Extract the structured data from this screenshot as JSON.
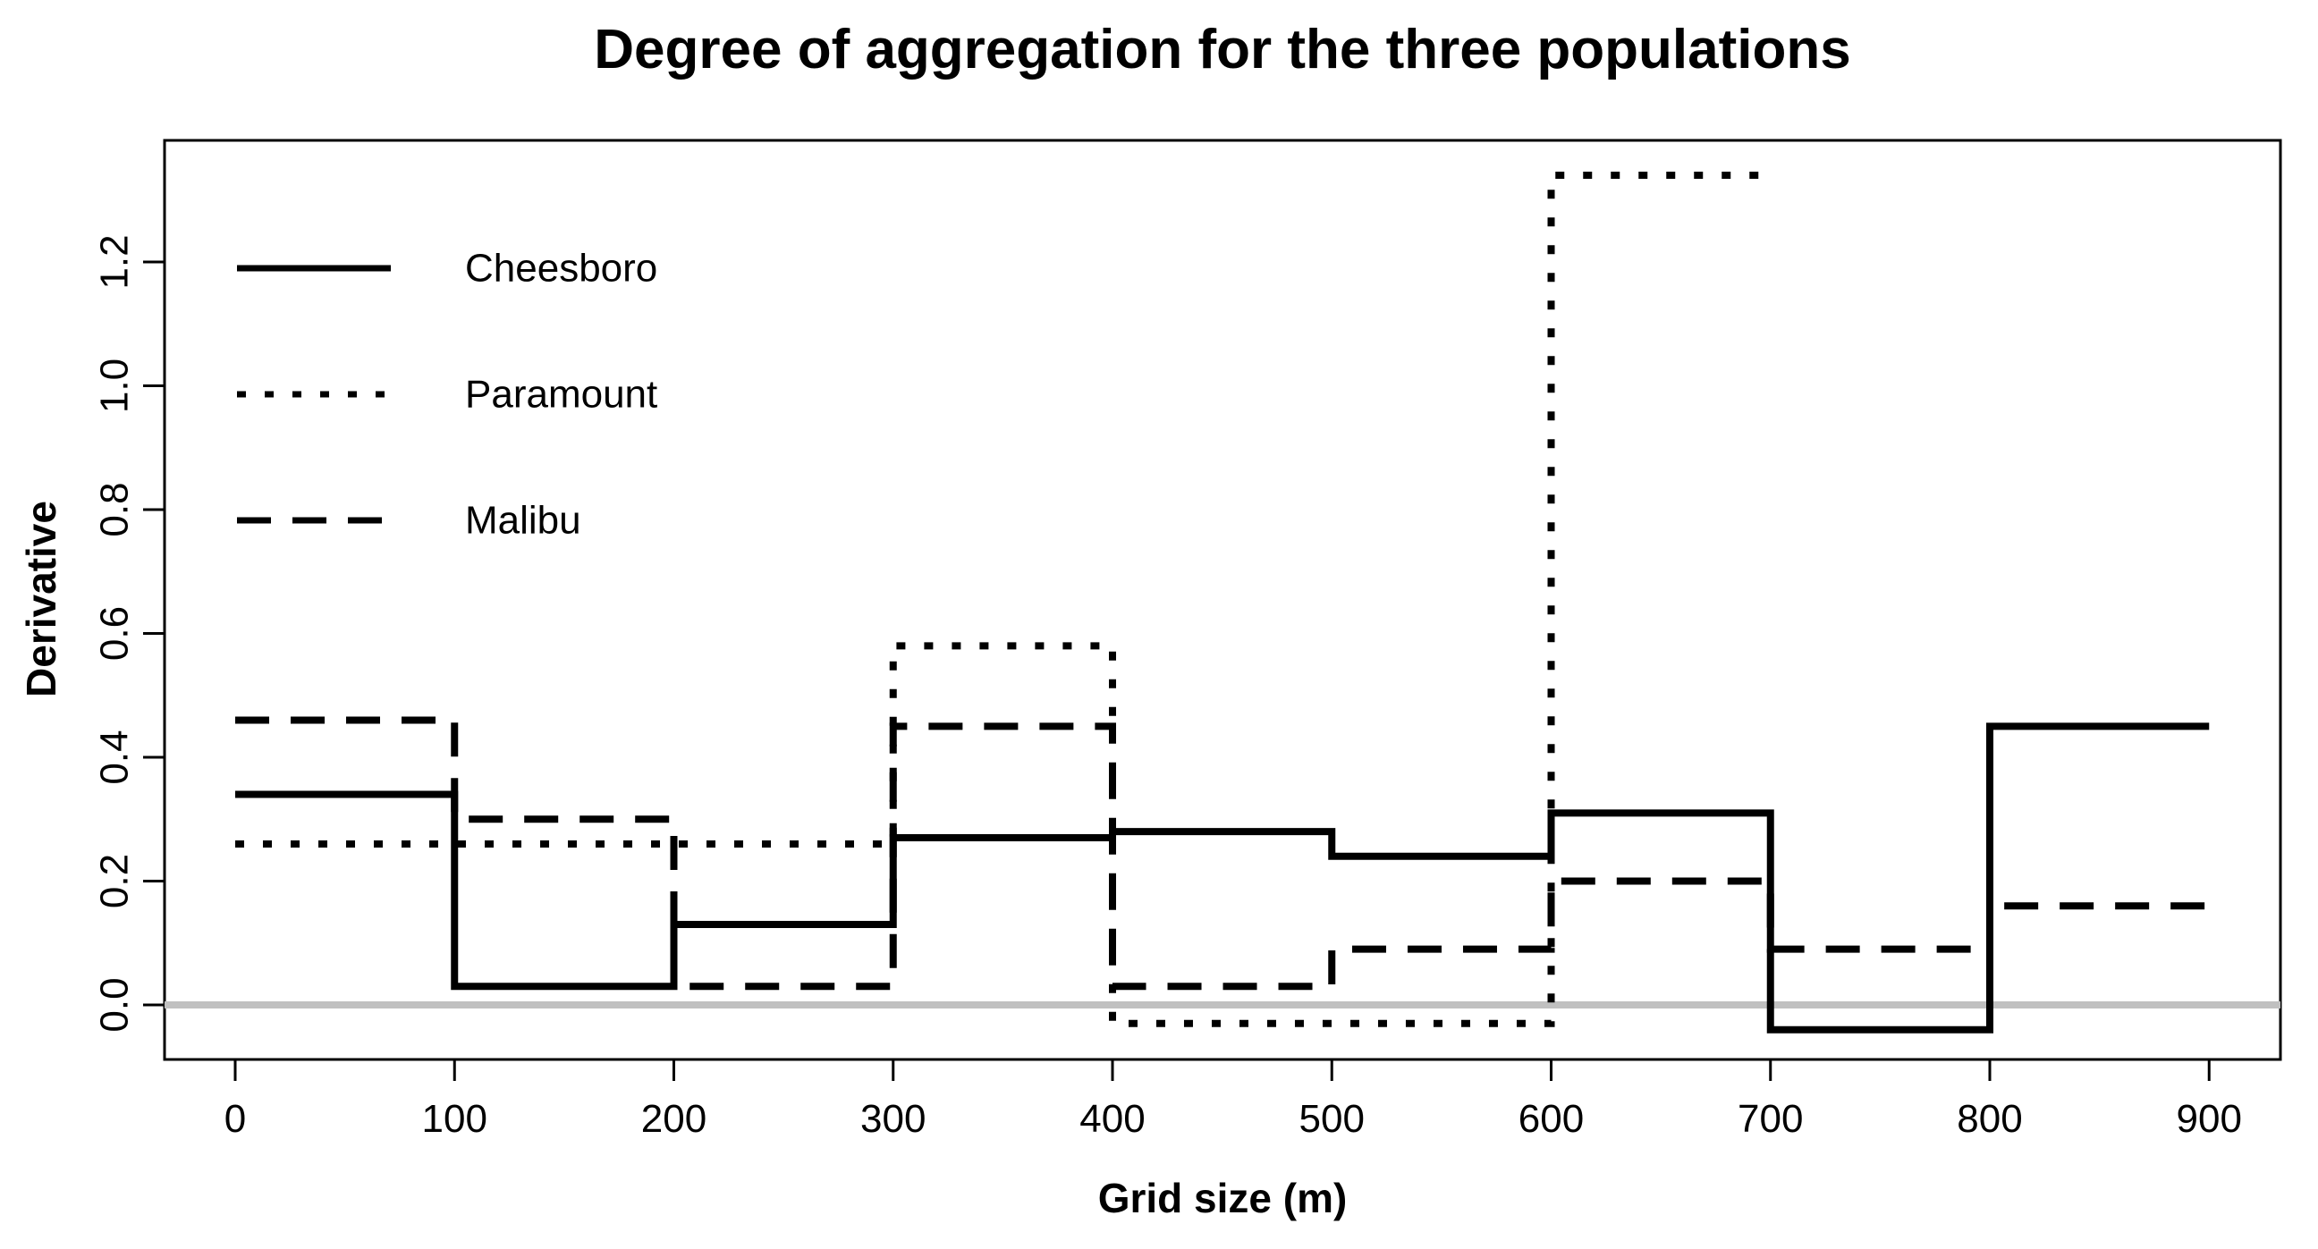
{
  "title": "Degree of aggregation for the three populations",
  "colors": {
    "line": "#000000",
    "zero_line": "#c0c0c0",
    "background": "#ffffff"
  },
  "chart_data": {
    "type": "line",
    "subtype": "step",
    "title": "Degree of aggregation for the three populations",
    "xlabel": "Grid size (m)",
    "ylabel": "Derivative",
    "grid": false,
    "legend_position": "top-left-inside",
    "x_bin_edges": [
      0,
      100,
      200,
      300,
      400,
      500,
      600,
      700,
      800,
      900
    ],
    "x_ticks": [
      0,
      100,
      200,
      300,
      400,
      500,
      600,
      700,
      800,
      900
    ],
    "y_ticks": [
      "0.0",
      "0.2",
      "0.4",
      "0.6",
      "0.8",
      "1.0",
      "1.2"
    ],
    "y_tick_values": [
      0.0,
      0.2,
      0.4,
      0.6,
      0.8,
      1.0,
      1.2
    ],
    "xlim": [
      -32,
      933
    ],
    "ylim": [
      -0.09,
      1.4
    ],
    "zero_line_y": 0,
    "series": [
      {
        "name": "Cheesboro",
        "line_style": "solid",
        "values": [
          0.34,
          0.03,
          0.13,
          0.27,
          0.28,
          0.24,
          0.31,
          -0.04,
          0.45
        ]
      },
      {
        "name": "Paramount",
        "line_style": "dotted",
        "values": [
          0.26,
          0.26,
          0.26,
          0.58,
          -0.03,
          -0.03,
          1.34,
          null,
          null
        ]
      },
      {
        "name": "Malibu",
        "line_style": "dashed",
        "values": [
          0.46,
          0.3,
          0.03,
          0.45,
          0.03,
          0.09,
          0.2,
          0.09,
          0.16
        ]
      }
    ]
  }
}
